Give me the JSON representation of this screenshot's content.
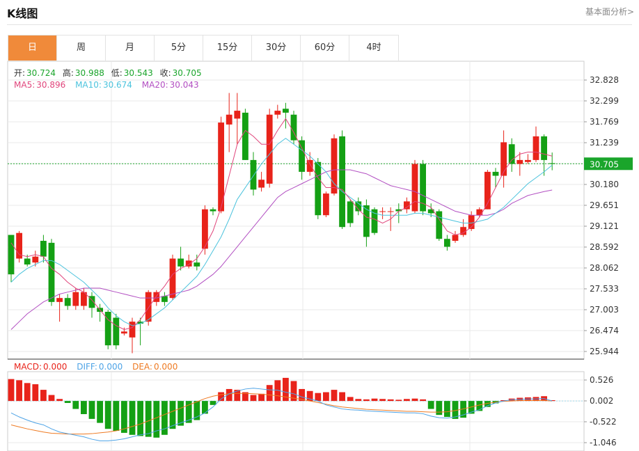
{
  "header": {
    "title": "K线图",
    "basic_link": "基本面分析>"
  },
  "tabs": [
    {
      "label": "日",
      "active": true
    },
    {
      "label": "周",
      "active": false
    },
    {
      "label": "月",
      "active": false
    },
    {
      "label": "5分",
      "active": false
    },
    {
      "label": "15分",
      "active": false
    },
    {
      "label": "30分",
      "active": false
    },
    {
      "label": "60分",
      "active": false
    },
    {
      "label": "4时",
      "active": false
    }
  ],
  "ohlc_legend": {
    "open_label": "开:",
    "open": "30.724",
    "high_label": "高:",
    "high": "30.988",
    "low_label": "低:",
    "low": "30.543",
    "close_label": "收:",
    "close": "30.705"
  },
  "ma_legend": {
    "ma5_label": "MA5:",
    "ma5": "30.896",
    "ma10_label": "MA10:",
    "ma10": "30.674",
    "ma20_label": "MA20:",
    "ma20": "30.043"
  },
  "macd_legend": {
    "macd_label": "MACD:",
    "macd": "0.000",
    "diff_label": "DIFF:",
    "diff": "0.000",
    "dea_label": "DEA:",
    "dea": "0.000"
  },
  "colors": {
    "up": "#e8231a",
    "down": "#14a014",
    "ma5": "#e0457b",
    "ma10": "#4cc3dd",
    "ma20": "#b24fc2",
    "diff": "#4da3e6",
    "dea": "#ee7a22",
    "current_price_bg": "#1aa52b",
    "grid": "#e8e8e8"
  },
  "chart_data": [
    {
      "type": "candlestick",
      "y_ticks": [
        "32.828",
        "32.299",
        "31.769",
        "31.239",
        "30.709",
        "30.180",
        "29.651",
        "29.121",
        "28.592",
        "28.062",
        "27.533",
        "27.003",
        "26.474",
        "25.944"
      ],
      "ylim": [
        25.944,
        32.828
      ],
      "current_price": "30.705",
      "candles": [
        [
          28.9,
          27.9,
          28.9,
          27.7
        ],
        [
          28.3,
          28.95,
          29.0,
          28.2
        ],
        [
          28.3,
          28.15,
          28.4,
          28.1
        ],
        [
          28.2,
          28.35,
          28.5,
          28.1
        ],
        [
          28.75,
          28.35,
          28.9,
          28.2
        ],
        [
          28.7,
          27.2,
          28.8,
          27.1
        ],
        [
          27.2,
          27.3,
          27.4,
          26.7
        ],
        [
          27.3,
          27.1,
          27.4,
          27.0
        ],
        [
          27.1,
          27.45,
          27.55,
          27.0
        ],
        [
          27.1,
          27.45,
          27.55,
          27.0
        ],
        [
          27.35,
          27.05,
          27.45,
          26.8
        ],
        [
          27.05,
          26.95,
          27.15,
          26.7
        ],
        [
          26.95,
          26.1,
          27.0,
          26.0
        ],
        [
          26.8,
          26.1,
          26.9,
          26.0
        ],
        [
          26.4,
          26.45,
          26.55,
          26.35
        ],
        [
          26.3,
          26.7,
          26.8,
          25.9
        ],
        [
          26.7,
          26.65,
          26.8,
          26.1
        ],
        [
          26.7,
          27.45,
          27.5,
          26.6
        ],
        [
          27.2,
          27.45,
          27.5,
          27.1
        ],
        [
          27.35,
          27.2,
          27.45,
          27.1
        ],
        [
          27.3,
          28.3,
          28.4,
          27.25
        ],
        [
          28.3,
          28.1,
          28.6,
          28.0
        ],
        [
          28.1,
          28.25,
          28.4,
          28.05
        ],
        [
          28.2,
          28.1,
          28.4,
          28.0
        ],
        [
          28.55,
          29.55,
          29.65,
          28.4
        ],
        [
          29.55,
          29.5,
          29.6,
          29.4
        ],
        [
          29.5,
          31.75,
          31.9,
          29.45
        ],
        [
          31.7,
          31.95,
          32.5,
          31.0
        ],
        [
          31.85,
          32.05,
          32.5,
          31.2
        ],
        [
          32.0,
          30.8,
          32.1,
          30.8
        ],
        [
          30.8,
          30.05,
          31.0,
          29.9
        ],
        [
          30.1,
          30.3,
          30.5,
          30.0
        ],
        [
          30.2,
          31.95,
          32.1,
          30.1
        ],
        [
          31.95,
          32.05,
          32.2,
          31.85
        ],
        [
          32.1,
          32.0,
          32.25,
          31.6
        ],
        [
          31.95,
          31.3,
          32.05,
          31.2
        ],
        [
          31.3,
          30.5,
          31.4,
          30.3
        ],
        [
          30.5,
          30.8,
          31.0,
          30.4
        ],
        [
          30.75,
          29.4,
          30.85,
          29.3
        ],
        [
          29.4,
          29.95,
          30.0,
          29.35
        ],
        [
          29.95,
          31.35,
          31.45,
          29.9
        ],
        [
          31.4,
          29.1,
          31.55,
          29.05
        ],
        [
          29.75,
          29.2,
          29.8,
          29.1
        ],
        [
          29.75,
          29.5,
          29.85,
          29.4
        ],
        [
          29.65,
          28.85,
          29.8,
          28.6
        ],
        [
          29.55,
          28.95,
          29.6,
          28.9
        ],
        [
          29.5,
          29.5,
          29.6,
          29.3
        ],
        [
          29.5,
          29.5,
          29.6,
          29.0
        ],
        [
          29.55,
          29.5,
          29.7,
          29.2
        ],
        [
          29.55,
          29.75,
          29.85,
          29.45
        ],
        [
          29.5,
          30.7,
          30.8,
          29.45
        ],
        [
          30.7,
          29.5,
          30.8,
          29.4
        ],
        [
          29.55,
          29.45,
          29.7,
          29.35
        ],
        [
          29.5,
          28.8,
          29.55,
          28.75
        ],
        [
          28.8,
          28.6,
          28.9,
          28.5
        ],
        [
          28.75,
          28.9,
          29.0,
          28.7
        ],
        [
          28.9,
          29.1,
          29.3,
          28.85
        ],
        [
          29.05,
          29.4,
          29.5,
          29.0
        ],
        [
          29.4,
          29.55,
          29.6,
          29.35
        ],
        [
          29.55,
          30.5,
          30.55,
          29.55
        ],
        [
          30.5,
          30.4,
          30.6,
          30.1
        ],
        [
          30.4,
          31.25,
          31.55,
          30.1
        ],
        [
          31.2,
          30.7,
          31.35,
          30.5
        ],
        [
          30.7,
          30.8,
          31.0,
          30.4
        ],
        [
          30.75,
          30.8,
          30.95,
          30.7
        ],
        [
          30.8,
          31.4,
          31.65,
          30.75
        ],
        [
          31.4,
          30.8,
          31.45,
          30.4
        ],
        [
          30.72,
          30.7,
          30.99,
          30.54
        ]
      ],
      "ma5": [
        28.7,
        28.4,
        28.35,
        28.4,
        28.35,
        28.05,
        27.9,
        27.7,
        27.55,
        27.45,
        27.25,
        27.0,
        26.75,
        26.6,
        26.5,
        26.55,
        26.75,
        27.05,
        27.35,
        27.6,
        27.9,
        28.05,
        28.15,
        28.3,
        28.6,
        29.0,
        29.6,
        30.4,
        31.2,
        31.55,
        31.4,
        31.2,
        31.2,
        31.55,
        31.85,
        31.5,
        31.1,
        30.7,
        30.35,
        30.1,
        30.1,
        30.05,
        29.8,
        29.55,
        29.35,
        29.3,
        29.2,
        29.3,
        29.5,
        29.6,
        29.75,
        29.7,
        29.6,
        29.3,
        29.0,
        28.9,
        28.95,
        29.1,
        29.35,
        29.7,
        30.1,
        30.5,
        30.8,
        30.95,
        31.0,
        31.0,
        30.95,
        30.9
      ],
      "ma10": [
        27.7,
        27.9,
        28.05,
        28.15,
        28.25,
        28.25,
        28.15,
        28.0,
        27.85,
        27.7,
        27.5,
        27.3,
        27.05,
        26.85,
        26.7,
        26.6,
        26.65,
        26.75,
        26.9,
        27.05,
        27.25,
        27.45,
        27.65,
        27.85,
        28.15,
        28.5,
        28.85,
        29.3,
        29.8,
        30.1,
        30.4,
        30.7,
        30.95,
        31.2,
        31.35,
        31.2,
        31.05,
        30.9,
        30.7,
        30.5,
        30.2,
        30.0,
        29.85,
        29.7,
        29.55,
        29.45,
        29.4,
        29.4,
        29.4,
        29.4,
        29.45,
        29.45,
        29.4,
        29.35,
        29.3,
        29.25,
        29.2,
        29.2,
        29.25,
        29.3,
        29.45,
        29.6,
        29.8,
        30.0,
        30.2,
        30.35,
        30.5,
        30.67
      ],
      "ma20": [
        26.5,
        26.7,
        26.9,
        27.05,
        27.2,
        27.3,
        27.4,
        27.45,
        27.5,
        27.55,
        27.55,
        27.55,
        27.5,
        27.45,
        27.4,
        27.35,
        27.3,
        27.3,
        27.3,
        27.35,
        27.4,
        27.45,
        27.5,
        27.6,
        27.75,
        27.9,
        28.1,
        28.35,
        28.6,
        28.85,
        29.1,
        29.35,
        29.6,
        29.85,
        30.0,
        30.1,
        30.2,
        30.3,
        30.4,
        30.5,
        30.55,
        30.55,
        30.55,
        30.5,
        30.45,
        30.35,
        30.25,
        30.15,
        30.1,
        30.05,
        30.0,
        29.9,
        29.8,
        29.7,
        29.6,
        29.5,
        29.45,
        29.4,
        29.4,
        29.4,
        29.45,
        29.55,
        29.7,
        29.8,
        29.9,
        29.95,
        30.0,
        30.04
      ]
    },
    {
      "type": "macd",
      "y_ticks": [
        "0.526",
        "0.002",
        "-0.522",
        "-1.046"
      ],
      "ylim": [
        -1.046,
        0.526
      ],
      "macd": [
        0.55,
        0.52,
        0.45,
        0.42,
        0.28,
        0.15,
        0.05,
        -0.05,
        -0.2,
        -0.33,
        -0.45,
        -0.55,
        -0.7,
        -0.75,
        -0.8,
        -0.85,
        -0.88,
        -0.9,
        -0.92,
        -0.85,
        -0.7,
        -0.62,
        -0.55,
        -0.48,
        -0.32,
        -0.1,
        0.22,
        0.3,
        0.28,
        0.22,
        0.15,
        0.18,
        0.4,
        0.52,
        0.58,
        0.5,
        0.3,
        0.25,
        0.2,
        0.22,
        0.28,
        0.22,
        0.1,
        0.05,
        0.04,
        0.06,
        0.05,
        0.04,
        0.03,
        0.05,
        0.06,
        0.04,
        -0.2,
        -0.35,
        -0.4,
        -0.45,
        -0.42,
        -0.32,
        -0.25,
        -0.15,
        -0.06,
        0.02,
        0.06,
        0.08,
        0.09,
        0.1,
        0.12,
        0.02
      ],
      "diff": [
        -0.3,
        -0.4,
        -0.48,
        -0.55,
        -0.6,
        -0.7,
        -0.78,
        -0.82,
        -0.86,
        -0.9,
        -0.96,
        -1.0,
        -1.0,
        -0.98,
        -0.95,
        -0.9,
        -0.85,
        -0.82,
        -0.75,
        -0.7,
        -0.62,
        -0.55,
        -0.48,
        -0.4,
        -0.3,
        -0.15,
        0.05,
        0.18,
        0.25,
        0.3,
        0.32,
        0.3,
        0.28,
        0.27,
        0.22,
        0.18,
        0.1,
        0.05,
        0.0,
        -0.1,
        -0.15,
        -0.2,
        -0.22,
        -0.23,
        -0.25,
        -0.26,
        -0.27,
        -0.28,
        -0.29,
        -0.3,
        -0.3,
        -0.32,
        -0.38,
        -0.42,
        -0.43,
        -0.4,
        -0.35,
        -0.28,
        -0.22,
        -0.12,
        -0.05,
        0.0,
        0.03,
        0.04,
        0.05,
        0.05,
        0.06,
        0.0
      ],
      "dea": [
        -0.6,
        -0.65,
        -0.7,
        -0.74,
        -0.78,
        -0.81,
        -0.82,
        -0.83,
        -0.83,
        -0.83,
        -0.82,
        -0.8,
        -0.78,
        -0.75,
        -0.7,
        -0.64,
        -0.58,
        -0.5,
        -0.42,
        -0.34,
        -0.26,
        -0.18,
        -0.1,
        -0.02,
        0.06,
        0.12,
        0.16,
        0.18,
        0.19,
        0.19,
        0.18,
        0.17,
        0.15,
        0.13,
        0.1,
        0.07,
        0.04,
        0.0,
        -0.04,
        -0.08,
        -0.12,
        -0.15,
        -0.17,
        -0.19,
        -0.21,
        -0.22,
        -0.23,
        -0.24,
        -0.25,
        -0.26,
        -0.26,
        -0.27,
        -0.28,
        -0.28,
        -0.27,
        -0.24,
        -0.2,
        -0.15,
        -0.1,
        -0.06,
        -0.03,
        -0.01,
        0.0,
        0.01,
        0.01,
        0.01,
        0.01,
        0.0
      ]
    }
  ]
}
